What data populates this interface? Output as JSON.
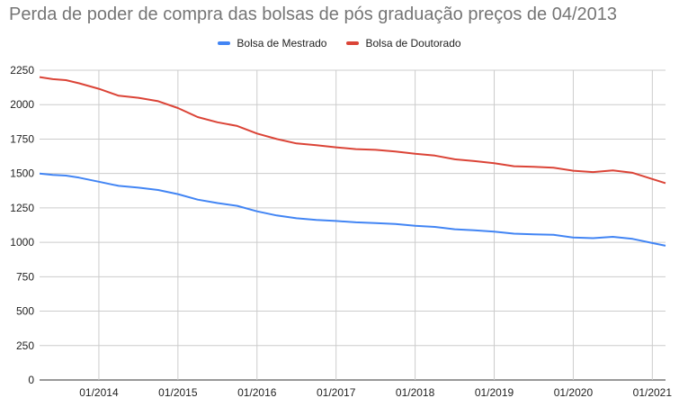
{
  "chart_data": {
    "type": "line",
    "title": "Perda de poder de compra das bolsas de pós graduação preços de 04/2013",
    "xlabel": "",
    "ylabel": "",
    "ylim": [
      0,
      2250
    ],
    "yticks": [
      0,
      250,
      500,
      750,
      1000,
      1250,
      1500,
      1750,
      2000,
      2250
    ],
    "xlim": [
      "2013-04",
      "2021-03"
    ],
    "xticks": [
      "01/2014",
      "01/2015",
      "01/2016",
      "01/2017",
      "01/2018",
      "01/2019",
      "01/2020",
      "01/2021"
    ],
    "grid": true,
    "legend_position": "top",
    "series": [
      {
        "name": "Bolsa de Mestrado",
        "color": "#4285f4",
        "points": [
          [
            "2013-04",
            1500
          ],
          [
            "2013-06",
            1490
          ],
          [
            "2013-08",
            1485
          ],
          [
            "2013-10",
            1470
          ],
          [
            "2014-01",
            1440
          ],
          [
            "2014-04",
            1410
          ],
          [
            "2014-07",
            1397
          ],
          [
            "2014-10",
            1380
          ],
          [
            "2015-01",
            1350
          ],
          [
            "2015-04",
            1310
          ],
          [
            "2015-07",
            1285
          ],
          [
            "2015-10",
            1265
          ],
          [
            "2016-01",
            1225
          ],
          [
            "2016-04",
            1195
          ],
          [
            "2016-07",
            1175
          ],
          [
            "2016-10",
            1163
          ],
          [
            "2017-01",
            1155
          ],
          [
            "2017-04",
            1145
          ],
          [
            "2017-07",
            1140
          ],
          [
            "2017-10",
            1133
          ],
          [
            "2018-01",
            1120
          ],
          [
            "2018-04",
            1112
          ],
          [
            "2018-07",
            1095
          ],
          [
            "2018-10",
            1087
          ],
          [
            "2019-01",
            1078
          ],
          [
            "2019-04",
            1063
          ],
          [
            "2019-07",
            1058
          ],
          [
            "2019-10",
            1055
          ],
          [
            "2020-01",
            1035
          ],
          [
            "2020-04",
            1030
          ],
          [
            "2020-07",
            1040
          ],
          [
            "2020-10",
            1025
          ],
          [
            "2021-01",
            995
          ],
          [
            "2021-03",
            975
          ]
        ]
      },
      {
        "name": "Bolsa de Doutorado",
        "color": "#db4437",
        "points": [
          [
            "2013-04",
            2200
          ],
          [
            "2013-06",
            2185
          ],
          [
            "2013-08",
            2178
          ],
          [
            "2013-10",
            2155
          ],
          [
            "2014-01",
            2115
          ],
          [
            "2014-04",
            2065
          ],
          [
            "2014-07",
            2050
          ],
          [
            "2014-10",
            2025
          ],
          [
            "2015-01",
            1975
          ],
          [
            "2015-04",
            1910
          ],
          [
            "2015-07",
            1872
          ],
          [
            "2015-10",
            1845
          ],
          [
            "2016-01",
            1790
          ],
          [
            "2016-04",
            1750
          ],
          [
            "2016-07",
            1718
          ],
          [
            "2016-10",
            1705
          ],
          [
            "2017-01",
            1690
          ],
          [
            "2017-04",
            1677
          ],
          [
            "2017-07",
            1672
          ],
          [
            "2017-10",
            1660
          ],
          [
            "2018-01",
            1643
          ],
          [
            "2018-04",
            1630
          ],
          [
            "2018-07",
            1603
          ],
          [
            "2018-10",
            1590
          ],
          [
            "2019-01",
            1575
          ],
          [
            "2019-04",
            1553
          ],
          [
            "2019-07",
            1548
          ],
          [
            "2019-10",
            1542
          ],
          [
            "2020-01",
            1520
          ],
          [
            "2020-04",
            1510
          ],
          [
            "2020-07",
            1523
          ],
          [
            "2020-10",
            1505
          ],
          [
            "2021-01",
            1460
          ],
          [
            "2021-03",
            1430
          ]
        ]
      }
    ]
  }
}
